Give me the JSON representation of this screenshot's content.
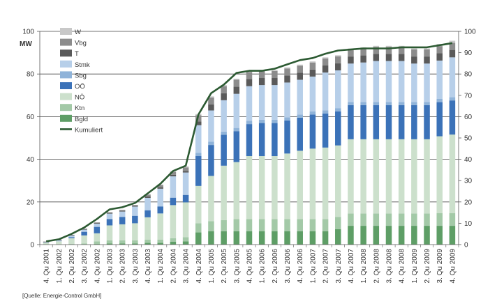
{
  "chart_data": {
    "type": "bar",
    "stacked": true,
    "ylabel": "MW",
    "ylim": [
      0,
      100
    ],
    "y2lim": [
      0,
      100
    ],
    "y_ticks": [
      0,
      20,
      40,
      60,
      80,
      100
    ],
    "y2_ticks": [
      0,
      10,
      20,
      30,
      40,
      50,
      60,
      70,
      80,
      90,
      100
    ],
    "grid": true,
    "legend_position": "top-left",
    "categories": [
      "4. Qu 2001",
      "1. Qu 2002",
      "2. Qu 2002",
      "3. Qu 2002",
      "4. Qu 2002",
      "1. Qu 2003",
      "2. Qu 2003",
      "3. Qu 2003",
      "4. Qu 2003",
      "1. Qu 2004",
      "2. Qu 2004",
      "3. Qu 2004",
      "4. Qu 2004",
      "1. Qu 2005",
      "2. Qu 2005",
      "3. Qu 2005",
      "4. Qu 2005",
      "1. Qu 2006",
      "2. Qu 2006",
      "3. Qu 2006",
      "4. Qu 2006",
      "1. Qu 2007",
      "2. Qu 2007",
      "3. Qu 2007",
      "4. Qu 2007",
      "1. Qu 2008",
      "2. Qu 2008",
      "3. Qu 2008",
      "4. Qu 2008",
      "1. Qu 2009",
      "2. Qu 2009",
      "3. Qu 2009",
      "4. Qu 2009"
    ],
    "series": [
      {
        "name": "Bgld",
        "color": "#5e9e66",
        "values": [
          0,
          0,
          0,
          0,
          0.3,
          0.5,
          0.5,
          0.5,
          0.8,
          0.8,
          1.3,
          1.5,
          5.7,
          6.3,
          6.3,
          6.3,
          6.3,
          6.3,
          6.3,
          6.3,
          6.3,
          6.3,
          6.3,
          7.2,
          8.8,
          8.8,
          8.8,
          8.8,
          8.8,
          8.8,
          8.8,
          8.8,
          8.8
        ]
      },
      {
        "name": "Ktn",
        "color": "#a3c9a7",
        "values": [
          0,
          0,
          0.3,
          0.5,
          1.2,
          1.5,
          1.5,
          1.5,
          1.5,
          1.5,
          1.7,
          2,
          4.3,
          4.7,
          5.2,
          5.7,
          5.7,
          5.7,
          5.7,
          5.7,
          5.7,
          5.7,
          5.7,
          5.8,
          5.8,
          5.8,
          5.8,
          5.8,
          5.8,
          5.8,
          5.8,
          6,
          6
        ]
      },
      {
        "name": "NÖ",
        "color": "#cce0cc",
        "values": [
          0.8,
          1.5,
          2.7,
          3.8,
          3.8,
          7,
          7.5,
          8,
          10.5,
          12.3,
          15.5,
          16.3,
          17.5,
          21.2,
          25.5,
          26.7,
          29.5,
          29.5,
          29.5,
          30.7,
          32,
          33,
          33.5,
          33.5,
          34.8,
          34.8,
          34.8,
          34.8,
          34.8,
          34.8,
          34.8,
          36,
          36.8
        ]
      },
      {
        "name": "OÖ",
        "color": "#3b72b8",
        "values": [
          0,
          0,
          0.5,
          1.7,
          3,
          3,
          3.5,
          3.5,
          3.3,
          3.3,
          3.5,
          3.5,
          14,
          14.5,
          14.5,
          14.5,
          15,
          15.5,
          15.5,
          15.5,
          15.5,
          16,
          16,
          16,
          16,
          16,
          16,
          16,
          16,
          16,
          16,
          16,
          16
        ]
      },
      {
        "name": "Sbg",
        "color": "#8fb3d9",
        "values": [
          0,
          0,
          0,
          0,
          0,
          0,
          0,
          0,
          0,
          0,
          0,
          0,
          1.5,
          1.5,
          1.5,
          1.5,
          1.5,
          1.5,
          1.5,
          1.5,
          1.5,
          1.5,
          1.5,
          1.5,
          1.5,
          1.5,
          1.5,
          1.5,
          1.5,
          1.5,
          1.5,
          1.5,
          1.5
        ]
      },
      {
        "name": "Stmk",
        "color": "#b7cfe9",
        "values": [
          0.3,
          0.5,
          0.8,
          1,
          1.5,
          2.5,
          2.5,
          4.3,
          5.8,
          8.3,
          10,
          10.5,
          13,
          14.7,
          14.7,
          16,
          16.3,
          16.3,
          16.3,
          16.3,
          16.3,
          16.3,
          17.7,
          17.7,
          18,
          18.5,
          19.2,
          19.2,
          19.2,
          18,
          18,
          18,
          18.7
        ]
      },
      {
        "name": "T",
        "color": "#5a5a5a",
        "values": [
          0.3,
          0.3,
          0.3,
          0.3,
          0.3,
          0.3,
          0.3,
          0.3,
          0.7,
          0.7,
          0.7,
          0.7,
          1.7,
          2.8,
          3.3,
          3.3,
          3.3,
          3.3,
          3.3,
          3.3,
          3.3,
          3.3,
          3.3,
          3.3,
          3.3,
          3.3,
          3.3,
          3.3,
          3.3,
          3.3,
          3.3,
          3.5,
          3.5
        ]
      },
      {
        "name": "Vbg",
        "color": "#8c8c8c",
        "values": [
          0,
          0,
          0,
          0.2,
          0.3,
          0.4,
          0.5,
          0.5,
          0.8,
          1,
          1.3,
          1.7,
          3,
          3.3,
          3.3,
          3.3,
          3.3,
          3.3,
          3.3,
          3.3,
          3.3,
          3.3,
          3.3,
          3.3,
          3.3,
          3.3,
          3.3,
          3.3,
          3.3,
          3.3,
          3.3,
          3.3,
          3.3
        ]
      },
      {
        "name": "W",
        "color": "#c8c8c8",
        "values": [
          0,
          0,
          0,
          0,
          0,
          0,
          0,
          0,
          0.3,
          0.3,
          0.5,
          0.5,
          0.5,
          0.5,
          0.5,
          0.5,
          0.5,
          0.5,
          0.5,
          0.5,
          0.5,
          0.5,
          0.5,
          0.5,
          0.5,
          0.5,
          0.5,
          0.5,
          0.5,
          0.5,
          0.5,
          1,
          1
        ]
      }
    ],
    "line": {
      "name": "Kumuliert",
      "color": "#2c5a32",
      "values": [
        1.5,
        2.5,
        5,
        8,
        12,
        16.5,
        17.5,
        19.5,
        24,
        28.5,
        34.5,
        37,
        61,
        71,
        75,
        80.5,
        81.5,
        81.5,
        82.5,
        84.5,
        86.5,
        87.5,
        89.5,
        91,
        91.5,
        92,
        92,
        92,
        92.5,
        92.5,
        92.5,
        93.5,
        94.5
      ]
    }
  },
  "unit_label": "MW",
  "source": "[Quelle: Energie-Control GmbH]",
  "legend_order": [
    "W",
    "Vbg",
    "T",
    "Stmk",
    "Sbg",
    "OÖ",
    "NÖ",
    "Ktn",
    "Bgld",
    "Kumuliert"
  ]
}
